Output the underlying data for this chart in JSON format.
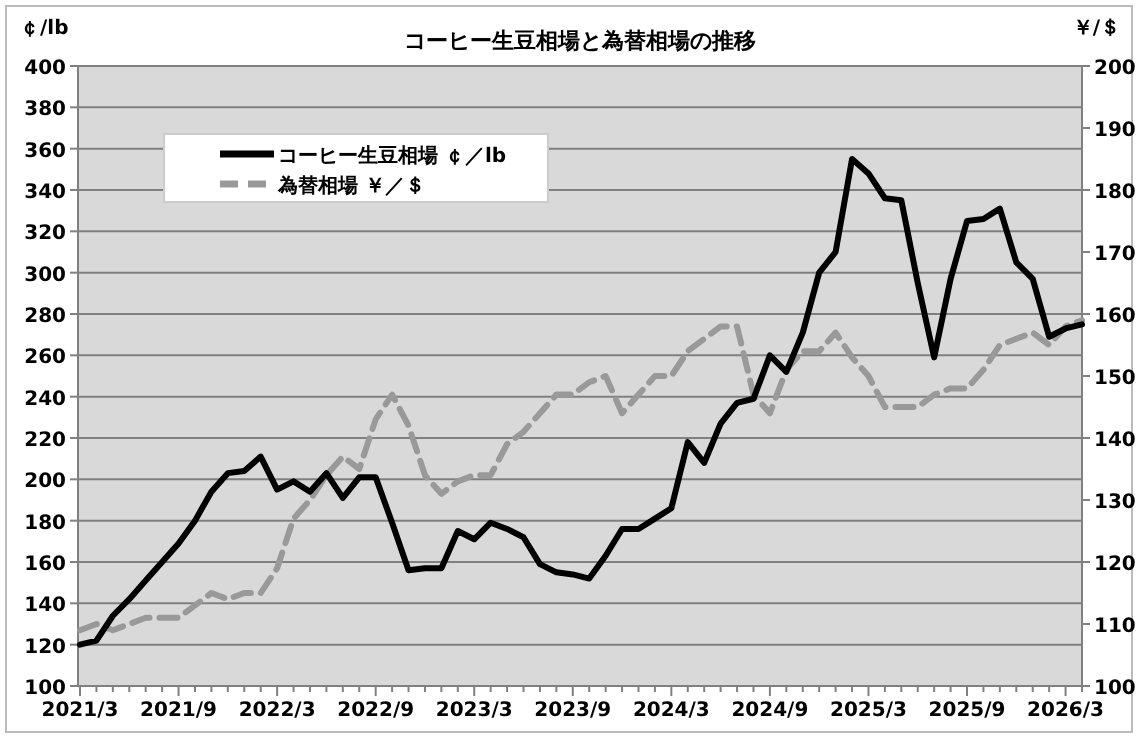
{
  "chart_data": {
    "type": "line",
    "title": "コーヒー生豆相場と為替相場の推移",
    "ylabel": "￠/lb",
    "y2label": "￥/＄",
    "categories": [
      "2021/3",
      null,
      null,
      null,
      null,
      null,
      "2021/9",
      null,
      null,
      null,
      null,
      null,
      "2022/3",
      null,
      null,
      null,
      null,
      null,
      "2022/9",
      null,
      null,
      null,
      null,
      null,
      "2023/3",
      null,
      null,
      null,
      null,
      null,
      "2023/9",
      null,
      null,
      null,
      null,
      null,
      "2024/3",
      null,
      null,
      null,
      null,
      null,
      "2024/9",
      null,
      null,
      null,
      null,
      null,
      "2025/3",
      null,
      null,
      null,
      null,
      null,
      "2025/9",
      null,
      null,
      null,
      null,
      null,
      "2026/3",
      null
    ],
    "series": [
      {
        "name": "コーヒー生豆相場 ￠／lb",
        "color": "#000000",
        "line_style": "solid",
        "values": [
          120,
          122,
          134,
          142,
          151,
          160,
          169,
          180,
          194,
          203,
          204,
          211,
          195,
          199,
          194,
          203,
          191,
          201,
          201,
          179,
          156,
          157,
          157,
          175,
          171,
          179,
          176,
          172,
          159,
          155,
          154,
          152,
          163,
          176,
          176,
          181,
          186,
          218,
          208,
          227,
          237,
          239,
          260,
          252,
          271,
          300,
          310,
          355,
          348,
          336,
          335,
          295,
          259,
          297,
          325,
          326,
          331,
          305,
          297,
          269,
          273,
          275
        ]
      },
      {
        "name": "為替相場 ￥／＄",
        "color": "#999999",
        "line_style": "dashed",
        "axis": "y2",
        "values": [
          109,
          110,
          109,
          110,
          111,
          111,
          111,
          113,
          115,
          114,
          115,
          115,
          119,
          127,
          130,
          134,
          137,
          135,
          143,
          147,
          142,
          134,
          131,
          133,
          134,
          134,
          139,
          141,
          144,
          147,
          147,
          149,
          150,
          144,
          147,
          150,
          150,
          154,
          156,
          158,
          158,
          147,
          144,
          151,
          154,
          154,
          157,
          153,
          150,
          145,
          145,
          145,
          147,
          148,
          148,
          151,
          155,
          156,
          157,
          155,
          158,
          159
        ]
      }
    ],
    "ylim": [
      100,
      400
    ],
    "yticks": [
      100,
      120,
      140,
      160,
      180,
      200,
      220,
      240,
      260,
      280,
      300,
      320,
      340,
      360,
      380,
      400
    ],
    "y2lim": [
      100,
      200
    ],
    "y2ticks": [
      100,
      110,
      120,
      130,
      140,
      150,
      160,
      170,
      180,
      190,
      200
    ],
    "grid": "y",
    "legend": "top left"
  }
}
